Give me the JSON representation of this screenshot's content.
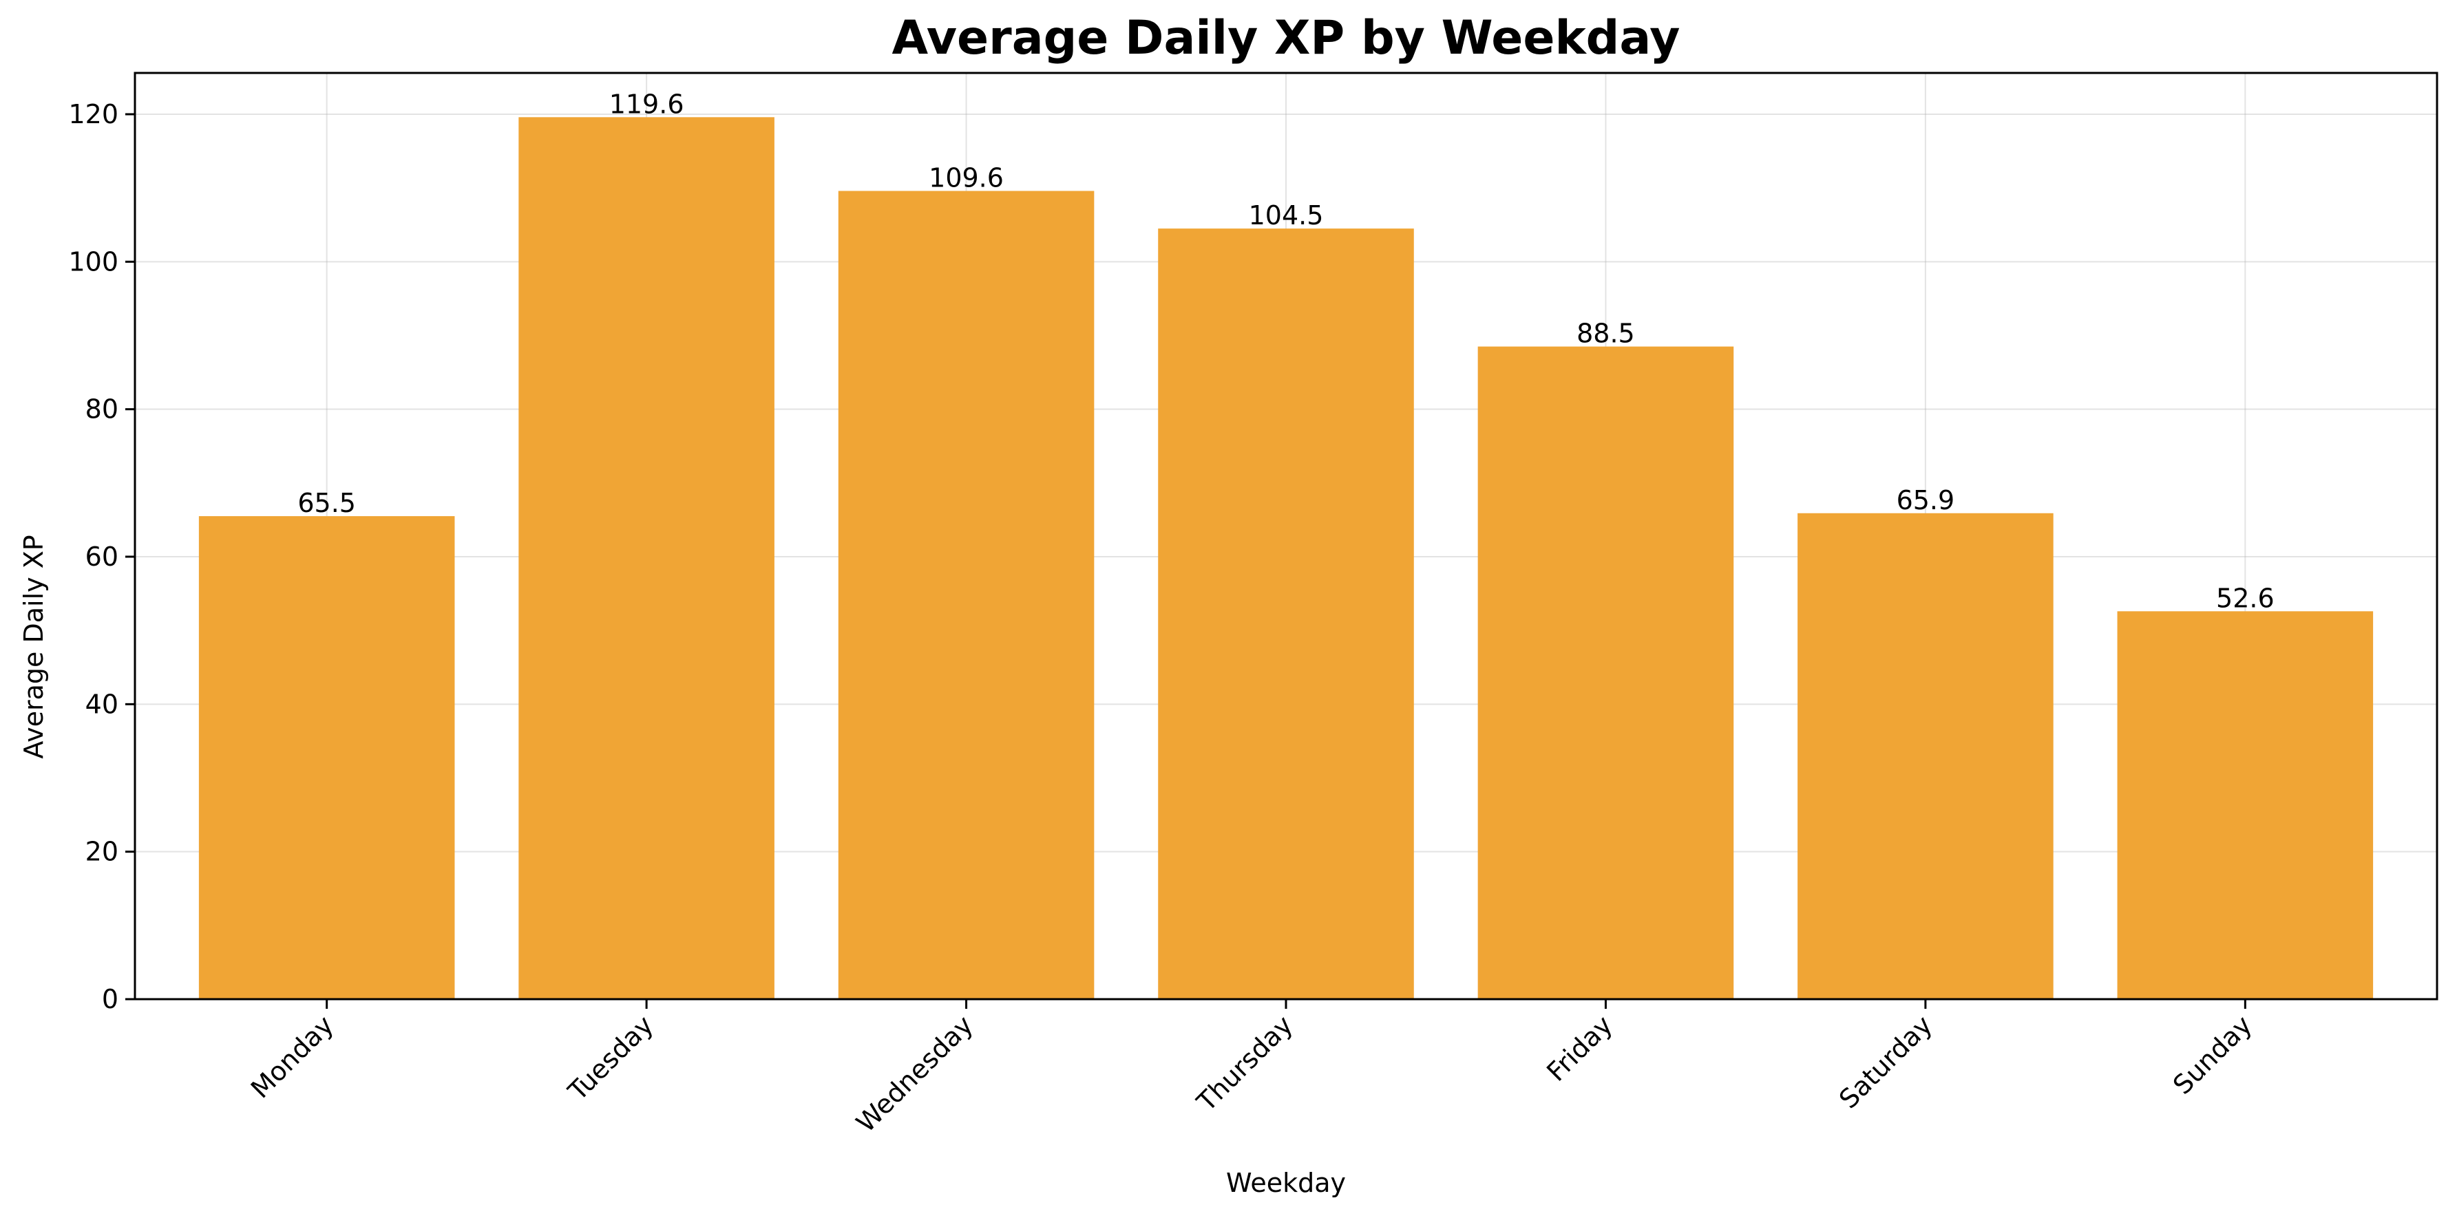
{
  "chart_data": {
    "type": "bar",
    "title": "Average Daily XP by Weekday",
    "xlabel": "Weekday",
    "ylabel": "Average Daily XP",
    "categories": [
      "Monday",
      "Tuesday",
      "Wednesday",
      "Thursday",
      "Friday",
      "Saturday",
      "Sunday"
    ],
    "values": [
      65.5,
      119.6,
      109.6,
      104.5,
      88.5,
      65.9,
      52.6
    ],
    "value_labels": [
      "65.5",
      "119.6",
      "109.6",
      "104.5",
      "88.5",
      "65.9",
      "52.6"
    ],
    "ylim": [
      0,
      125.6
    ],
    "yticks": [
      0,
      20,
      40,
      60,
      80,
      100,
      120
    ],
    "grid": true,
    "bar_color": "#F0A535",
    "legend": "none"
  }
}
